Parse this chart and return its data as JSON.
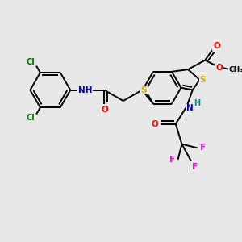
{
  "background_color": "#e8e8e8",
  "bond_color": "#000000",
  "atom_colors": {
    "F": "#ff00ff",
    "O": "#ff0000",
    "N": "#0000bb",
    "S": "#ccaa00",
    "H": "#008888",
    "Cl": "#007700",
    "C": "#000000"
  },
  "figsize": [
    3.0,
    3.0
  ],
  "dpi": 100
}
